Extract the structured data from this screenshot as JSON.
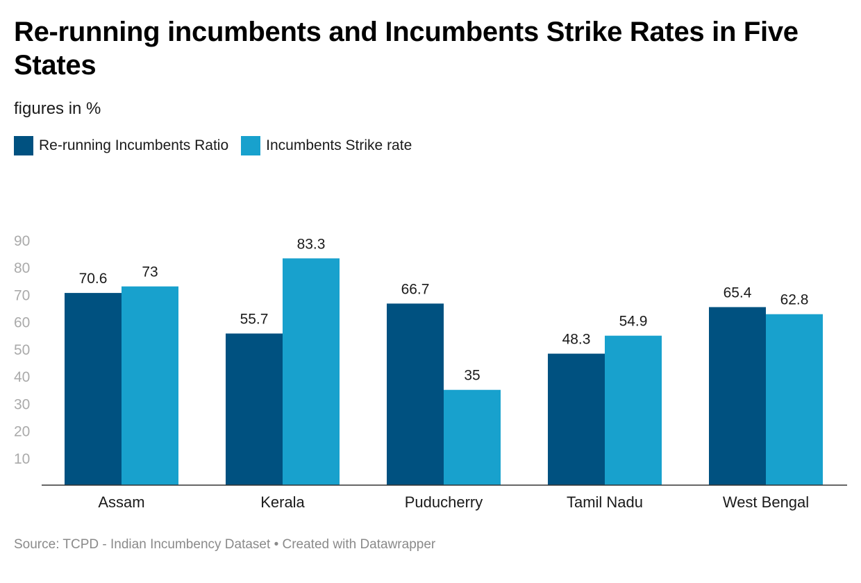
{
  "title": "Re-running incumbents and Incumbents Strike Rates in Five States",
  "subtitle": "figures in %",
  "footer": {
    "source": "Source: TCPD - Indian Incumbency Dataset",
    "separator": "•",
    "credit": "Created with Datawrapper"
  },
  "colors": {
    "series1": "#005180",
    "series2": "#18a1cd",
    "axis": "#333333",
    "tick_text": "#aaaaaa"
  },
  "chart_data": {
    "type": "bar",
    "categories": [
      "Assam",
      "Kerala",
      "Puducherry",
      "Tamil Nadu",
      "West Bengal"
    ],
    "series": [
      {
        "name": "Re-running Incumbents Ratio",
        "values": [
          70.6,
          55.7,
          66.7,
          48.3,
          65.4
        ],
        "labels": [
          "70.6",
          "55.7",
          "66.7",
          "48.3",
          "65.4"
        ]
      },
      {
        "name": "Incumbents Strike rate",
        "values": [
          73,
          83.3,
          35,
          54.9,
          62.8
        ],
        "labels": [
          "73",
          "83.3",
          "35",
          "54.9",
          "62.8"
        ]
      }
    ],
    "yticks": [
      10,
      20,
      30,
      40,
      50,
      60,
      70,
      80,
      90
    ],
    "ylim": [
      0,
      90
    ],
    "grid": false,
    "legend": "top-left"
  }
}
